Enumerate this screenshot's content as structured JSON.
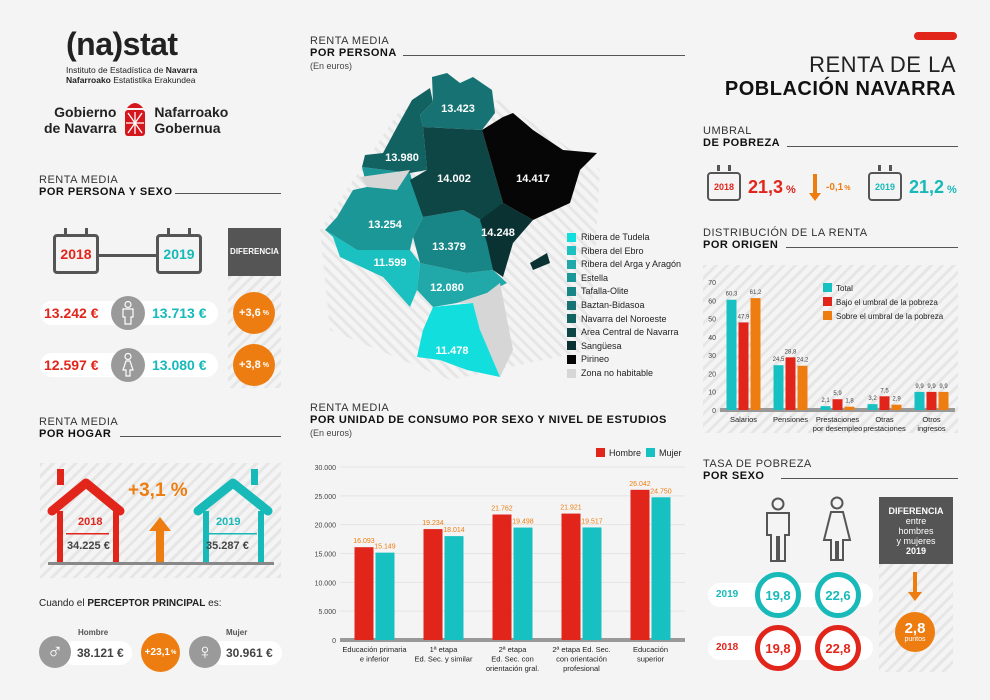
{
  "header": {
    "logo": "(na)stat",
    "logo_sub1_a": "Instituto de Estadística de ",
    "logo_sub1_b": "Navarra",
    "logo_sub2_a": "Nafarroako",
    "logo_sub2_b": " Estatistika Erakundea",
    "gov_left1": "Gobierno",
    "gov_left2": "de Navarra",
    "gov_right1": "Nafarroako",
    "gov_right2": "Gobernua",
    "title1": "RENTA DE LA",
    "title2": "POBLACIÓN NAVARRA"
  },
  "persona_sexo": {
    "title1": "RENTA MEDIA",
    "title2": "POR PERSONA Y SEXO",
    "year1": "2018",
    "year2": "2019",
    "diff_label": "DIFERENCIA",
    "rows": [
      {
        "icon": "man-icon",
        "v2018": "13.242 €",
        "v2019": "13.713 €",
        "diff": "+3,6",
        "pct": "%"
      },
      {
        "icon": "woman-icon",
        "v2018": "12.597 €",
        "v2019": "13.080 €",
        "diff": "+3,8",
        "pct": "%"
      }
    ]
  },
  "hogar": {
    "title1": "RENTA MEDIA",
    "title2": "POR HOGAR",
    "year1": "2018",
    "value1": "34.225 €",
    "year2": "2019",
    "value2": "35.287 €",
    "change": "+3,1 %",
    "perceptor_a": "Cuando el ",
    "perceptor_b": "PERCEPTOR PRINCIPAL",
    "perceptor_c": " es:",
    "hombre_label": "Hombre",
    "hombre_value": "38.121 €",
    "mujer_label": "Mujer",
    "mujer_value": "30.961 €",
    "diff": "+23,1",
    "pct": "%"
  },
  "mapa": {
    "title1": "RENTA MEDIA",
    "title2": "POR PERSONA",
    "unit": "(En euros)",
    "regions": [
      {
        "name": "Ribera de Tudela",
        "value": "11.478",
        "color": "#12dede"
      },
      {
        "name": "Ribera del Ebro",
        "value": "11.599",
        "color": "#1bc0c0"
      },
      {
        "name": "Ribera del Arga y Aragón",
        "value": "12.080",
        "color": "#21a9a9"
      },
      {
        "name": "Estella",
        "value": "13.254",
        "color": "#1c9797"
      },
      {
        "name": "Tafalla-Olite",
        "value": "13.379",
        "color": "#188686"
      },
      {
        "name": "Baztan-Bidasoa",
        "value": "13.423",
        "color": "#177373"
      },
      {
        "name": "Navarra del Noroeste",
        "value": "13.980",
        "color": "#136262"
      },
      {
        "name": "Area Central de Navarra",
        "value": "14.002",
        "color": "#0e4646"
      },
      {
        "name": "Sangüesa",
        "value": "14.248",
        "color": "#0a3232"
      },
      {
        "name": "Pirineo",
        "value": "14.417",
        "color": "#060606"
      },
      {
        "name": "Zona no habitable",
        "value": "",
        "color": "#d6d6d6"
      }
    ]
  },
  "umbral": {
    "title1": "UMBRAL",
    "title2": "DE POBREZA",
    "year1": "2018",
    "value1": "21,3",
    "year2": "2019",
    "value2": "21,2",
    "pct": "%",
    "change": "-0,1",
    "change_pct": "%"
  },
  "distribucion": {
    "title1": "DISTRIBUCIÓN DE LA RENTA",
    "title2": "POR ORIGEN"
  },
  "consumo": {
    "title1": "RENTA MEDIA",
    "title2": "POR UNIDAD DE CONSUMO POR SEXO Y NIVEL DE ESTUDIOS",
    "unit": "(En euros)"
  },
  "tasa": {
    "title1": "TASA DE POBREZA",
    "title2": "POR SEXO",
    "year2019": "2019",
    "year2018": "2018",
    "h2019": "19,8",
    "m2019": "22,6",
    "h2018": "19,8",
    "m2018": "22,8",
    "diff_title": "DIFERENCIA",
    "diff_l1": "entre",
    "diff_l2": "hombres",
    "diff_l3": "y mujeres",
    "diff_year": "2019",
    "diff_value": "2,8",
    "diff_unit": "puntos"
  },
  "chart_data": [
    {
      "type": "bar",
      "title": "Distribución de la renta por origen",
      "categories": [
        "Salarios",
        "Pensiones",
        "Prestaciones por desempleo",
        "Otras prestaciones",
        "Otros ingresos"
      ],
      "category_lines": [
        [
          "Salarios"
        ],
        [
          "Pensiones"
        ],
        [
          "Prestaciones",
          "por desempleo"
        ],
        [
          "Otras",
          "prestaciones"
        ],
        [
          "Otros",
          "ingresos"
        ]
      ],
      "series": [
        {
          "name": "Total",
          "color": "#17c1c1",
          "values": [
            60.3,
            24.5,
            2.1,
            3.2,
            9.9
          ],
          "labels": [
            "60,3",
            "24,5",
            "2,1",
            "3,2",
            "9,9"
          ]
        },
        {
          "name": "Bajo el umbral de la pobreza",
          "color": "#e1251b",
          "values": [
            47.9,
            28.8,
            5.9,
            7.5,
            9.9
          ],
          "labels": [
            "47,9",
            "28,8",
            "5,9",
            "7,5",
            "9,9"
          ]
        },
        {
          "name": "Sobre el umbral de la pobreza",
          "color": "#ee7d11",
          "values": [
            61.2,
            24.2,
            1.8,
            2.9,
            9.9
          ],
          "labels": [
            "61,2",
            "24,2",
            "1,8",
            "2,9",
            "9,9"
          ]
        }
      ],
      "ylim": [
        0,
        70
      ],
      "yticks": [
        "0",
        "10",
        "20",
        "30",
        "40",
        "50",
        "60",
        "70"
      ],
      "legend": "top-right",
      "grid": false
    },
    {
      "type": "bar",
      "title": "Renta media por unidad de consumo por sexo y nivel de estudios",
      "categories": [
        "Educación primaria e inferior",
        "1ª etapa Ed. Sec. y similar",
        "2ª etapa Ed. Sec. con orientación gral.",
        "2ª etapa Ed. Sec. con orientación profesional",
        "Educación superior"
      ],
      "category_lines": [
        [
          "Educación primaria",
          "e inferior"
        ],
        [
          "1ª etapa",
          "Ed. Sec. y similar"
        ],
        [
          "2ª etapa",
          "Ed. Sec. con",
          "orientación gral."
        ],
        [
          "2ª etapa Ed. Sec.",
          "con orientación",
          "profesional"
        ],
        [
          "Educación",
          "superior"
        ]
      ],
      "series": [
        {
          "name": "Hombre",
          "color": "#e1251b",
          "values": [
            16093,
            19234,
            21762,
            21921,
            26042
          ],
          "labels": [
            "16.093",
            "19.234",
            "21.762",
            "21.921",
            "26.042"
          ]
        },
        {
          "name": "Mujer",
          "color": "#17c1c1",
          "values": [
            15149,
            18014,
            19498,
            19517,
            24750
          ],
          "labels": [
            "15.149",
            "18.014",
            "19.498",
            "19.517",
            "24.750"
          ]
        }
      ],
      "ylim": [
        0,
        30000
      ],
      "yticks": [
        "0",
        "5.000",
        "10.000",
        "15.000",
        "20.000",
        "25.000",
        "30.000"
      ],
      "legend": "top-right",
      "grid": true
    }
  ]
}
